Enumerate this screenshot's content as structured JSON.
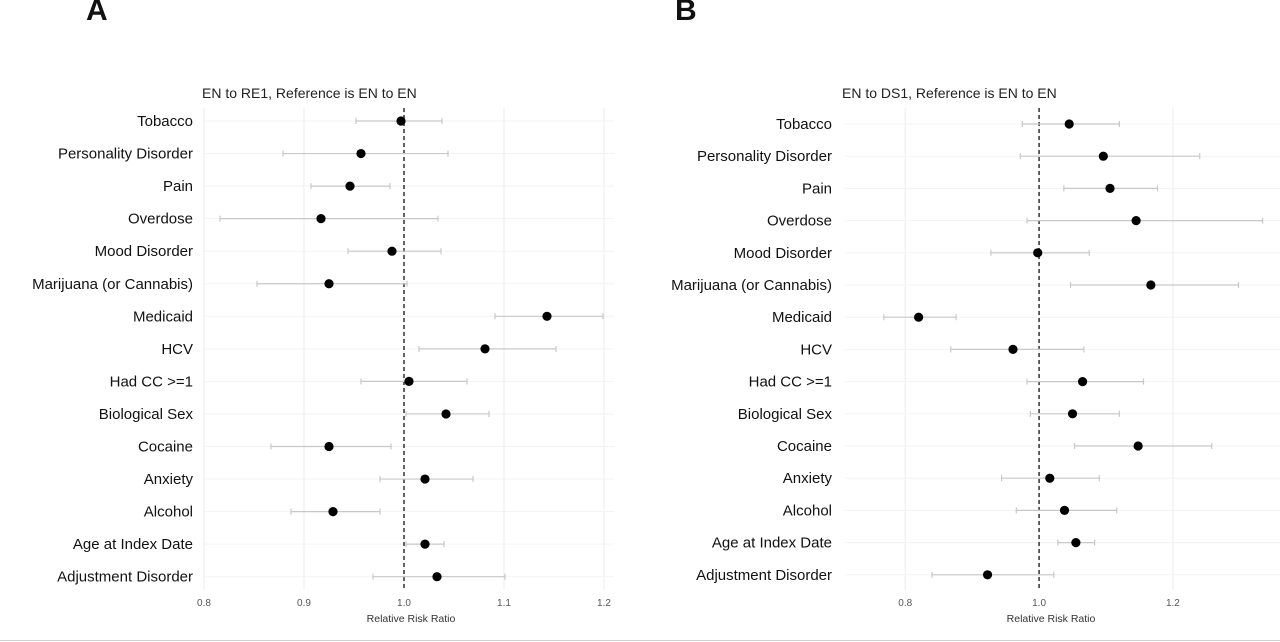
{
  "panels": [
    {
      "letter": "A"
    },
    {
      "letter": "B"
    }
  ],
  "chart_data": [
    {
      "type": "scatter",
      "subtype": "forest-plot",
      "title": "EN to RE1, Reference is EN to EN",
      "xlabel": "Relative Risk Ratio",
      "xlim": [
        0.8,
        1.21
      ],
      "xticks": [
        0.8,
        0.9,
        1.0,
        1.1,
        1.2
      ],
      "xtick_labels": [
        "0.8",
        "0.9",
        "1.0",
        "1.1",
        "1.2"
      ],
      "reference_line": 1.0,
      "grid": true,
      "point_color": "#000000",
      "ci_color": "#c8c8c8",
      "categories": [
        "Tobacco",
        "Personality Disorder",
        "Pain",
        "Overdose",
        "Mood Disorder",
        "Marijuana (or Cannabis)",
        "Medicaid",
        "HCV",
        "Had CC >=1",
        "Biological Sex",
        "Cocaine",
        "Anxiety",
        "Alcohol",
        "Age at Index Date",
        "Adjustment Disorder"
      ],
      "estimates": [
        0.997,
        0.957,
        0.946,
        0.917,
        0.988,
        0.925,
        1.143,
        1.081,
        1.005,
        1.042,
        0.925,
        1.021,
        0.929,
        1.021,
        1.033
      ],
      "ci_lower": [
        0.952,
        0.879,
        0.907,
        0.816,
        0.944,
        0.853,
        1.091,
        1.015,
        0.957,
        1.002,
        0.867,
        0.976,
        0.887,
        1.002,
        0.969
      ],
      "ci_upper": [
        1.038,
        1.044,
        0.986,
        1.034,
        1.037,
        1.003,
        1.199,
        1.152,
        1.063,
        1.085,
        0.987,
        1.069,
        0.976,
        1.04,
        1.101
      ]
    },
    {
      "type": "scatter",
      "subtype": "forest-plot",
      "title": "EN to DS1, Reference is EN to EN",
      "xlabel": "Relative Risk Ratio",
      "xlim": [
        0.71,
        1.36
      ],
      "xticks": [
        0.8,
        1.0,
        1.2
      ],
      "xtick_labels": [
        "0.8",
        "1.0",
        "1.2"
      ],
      "reference_line": 1.0,
      "grid": true,
      "point_color": "#000000",
      "ci_color": "#c8c8c8",
      "categories": [
        "Tobacco",
        "Personality Disorder",
        "Pain",
        "Overdose",
        "Mood Disorder",
        "Marijuana (or Cannabis)",
        "Medicaid",
        "HCV",
        "Had CC >=1",
        "Biological Sex",
        "Cocaine",
        "Anxiety",
        "Alcohol",
        "Age at Index Date",
        "Adjustment Disorder"
      ],
      "estimates": [
        1.045,
        1.096,
        1.106,
        1.145,
        0.998,
        1.167,
        0.82,
        0.961,
        1.065,
        1.05,
        1.148,
        1.016,
        1.038,
        1.055,
        0.923
      ],
      "ci_lower": [
        0.975,
        0.972,
        1.037,
        0.982,
        0.928,
        1.047,
        0.768,
        0.868,
        0.982,
        0.987,
        1.053,
        0.944,
        0.966,
        1.028,
        0.84
      ],
      "ci_upper": [
        1.12,
        1.24,
        1.177,
        1.334,
        1.075,
        1.298,
        0.876,
        1.067,
        1.156,
        1.12,
        1.258,
        1.09,
        1.116,
        1.083,
        1.022
      ]
    }
  ]
}
